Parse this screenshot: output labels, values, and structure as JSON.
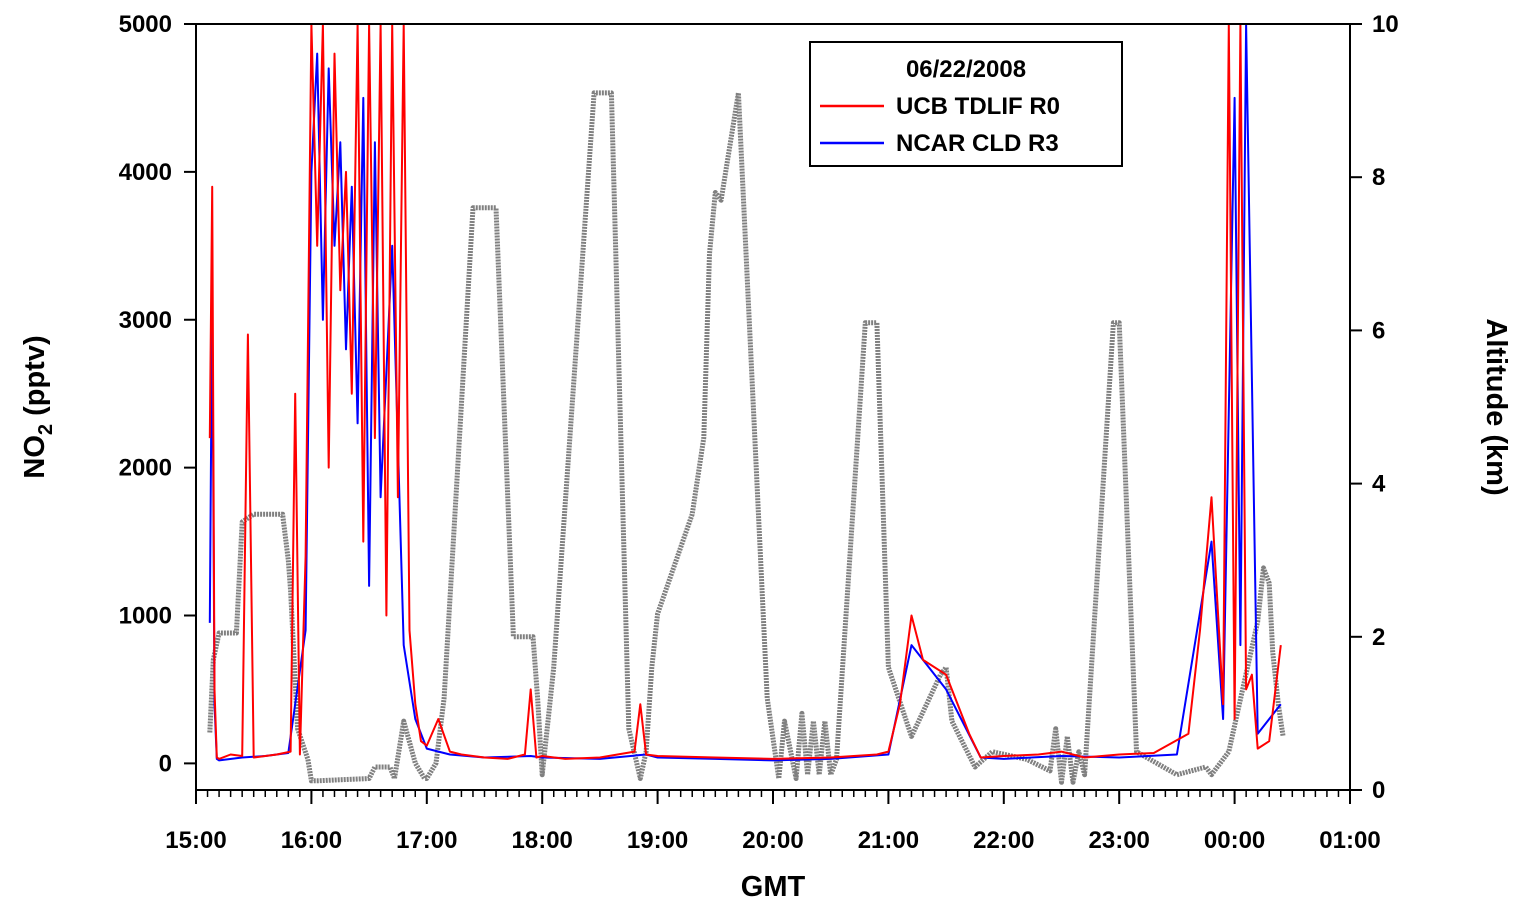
{
  "chart_data": {
    "type": "line",
    "legend": {
      "title": "06/22/2008",
      "placement": "top-center"
    },
    "x_axis": {
      "title": "GMT",
      "ticks": [
        "15:00",
        "16:00",
        "17:00",
        "18:00",
        "19:00",
        "20:00",
        "21:00",
        "22:00",
        "23:00",
        "00:00",
        "01:00"
      ],
      "range_hours": [
        15,
        25
      ]
    },
    "y_left": {
      "title_main": "NO",
      "title_sub": "2",
      "title_rest": " (pptv)",
      "ticks": [
        "0",
        "1000",
        "2000",
        "3000",
        "4000",
        "5000"
      ],
      "range": [
        -180,
        5000
      ]
    },
    "y_right": {
      "title": "Altitude (km)",
      "ticks": [
        "0",
        "2",
        "4",
        "6",
        "8",
        "10"
      ],
      "range": [
        0,
        10
      ]
    },
    "series": [
      {
        "name": "UCB TDLIF R0",
        "color": "#ff0000",
        "axis": "left",
        "x": [
          15.12,
          15.14,
          15.16,
          15.18,
          15.2,
          15.3,
          15.4,
          15.45,
          15.5,
          15.7,
          15.82,
          15.86,
          15.9,
          15.95,
          16.0,
          16.05,
          16.1,
          16.15,
          16.2,
          16.25,
          16.3,
          16.35,
          16.4,
          16.45,
          16.5,
          16.55,
          16.6,
          16.65,
          16.7,
          16.75,
          16.8,
          16.85,
          16.9,
          16.95,
          17.0,
          17.1,
          17.2,
          17.3,
          17.5,
          17.7,
          17.85,
          17.9,
          17.95,
          18.0,
          18.2,
          18.5,
          18.8,
          18.85,
          18.9,
          19.0,
          19.5,
          20.0,
          20.5,
          20.9,
          21.0,
          21.1,
          21.2,
          21.3,
          21.5,
          21.7,
          21.8,
          22.0,
          22.3,
          22.5,
          22.7,
          23.0,
          23.3,
          23.6,
          23.7,
          23.8,
          23.9,
          23.95,
          24.0,
          24.05,
          24.1,
          24.15,
          24.2,
          24.3,
          24.4
        ],
        "y": [
          2200,
          3900,
          500,
          40,
          30,
          60,
          50,
          2900,
          40,
          60,
          80,
          2500,
          60,
          1400,
          5000,
          3500,
          5000,
          2000,
          4800,
          3200,
          4000,
          2500,
          5000,
          1500,
          5000,
          2200,
          5000,
          1000,
          5000,
          1800,
          5000,
          900,
          400,
          150,
          120,
          300,
          80,
          60,
          40,
          30,
          60,
          500,
          40,
          50,
          30,
          40,
          80,
          400,
          60,
          50,
          40,
          30,
          40,
          60,
          80,
          400,
          1000,
          700,
          600,
          200,
          40,
          50,
          60,
          80,
          40,
          60,
          70,
          200,
          900,
          1800,
          400,
          5000,
          300,
          5000,
          500,
          600,
          100,
          150,
          800
        ]
      },
      {
        "name": "NCAR CLD R3",
        "color": "#0000ff",
        "axis": "left",
        "x": [
          15.12,
          15.14,
          15.16,
          15.18,
          15.2,
          15.4,
          15.6,
          15.8,
          15.95,
          16.0,
          16.05,
          16.1,
          16.15,
          16.2,
          16.25,
          16.3,
          16.35,
          16.4,
          16.45,
          16.5,
          16.55,
          16.6,
          16.7,
          16.8,
          16.9,
          17.0,
          17.2,
          17.5,
          17.9,
          18.0,
          18.5,
          18.9,
          19.0,
          19.5,
          20.0,
          20.5,
          21.0,
          21.2,
          21.5,
          21.8,
          22.0,
          22.5,
          23.0,
          23.5,
          23.8,
          23.9,
          24.0,
          24.05,
          24.1,
          24.2,
          24.4
        ],
        "y": [
          950,
          3200,
          400,
          30,
          20,
          40,
          50,
          70,
          900,
          4000,
          4800,
          3000,
          4700,
          3500,
          4200,
          2800,
          3900,
          2300,
          4500,
          1200,
          4200,
          1800,
          3500,
          800,
          300,
          100,
          60,
          40,
          50,
          40,
          30,
          60,
          40,
          30,
          20,
          30,
          60,
          800,
          500,
          40,
          30,
          50,
          40,
          60,
          1500,
          300,
          4500,
          800,
          5000,
          200,
          400
        ]
      },
      {
        "name": "",
        "color": "#808080",
        "axis": "right",
        "x": [
          15.12,
          15.15,
          15.2,
          15.35,
          15.4,
          15.5,
          15.75,
          15.8,
          15.82,
          15.88,
          15.97,
          16.0,
          16.05,
          16.5,
          16.55,
          16.68,
          16.72,
          16.8,
          16.9,
          16.98,
          17.0,
          17.08,
          17.15,
          17.4,
          17.6,
          17.75,
          17.92,
          17.96,
          18.0,
          18.05,
          18.1,
          18.45,
          18.6,
          18.75,
          18.85,
          18.9,
          18.95,
          19.0,
          19.3,
          19.4,
          19.45,
          19.5,
          19.55,
          19.7,
          19.95,
          20.05,
          20.1,
          20.2,
          20.25,
          20.3,
          20.35,
          20.4,
          20.45,
          20.5,
          20.55,
          20.8,
          20.9,
          21.0,
          21.2,
          21.45,
          21.5,
          21.55,
          21.65,
          21.75,
          21.9,
          22.2,
          22.4,
          22.45,
          22.5,
          22.55,
          22.6,
          22.65,
          22.7,
          22.95,
          23.0,
          23.15,
          23.5,
          23.75,
          23.8,
          23.85,
          23.95,
          24.2,
          24.25,
          24.3,
          24.33,
          24.38,
          24.42
        ],
        "y": [
          0.75,
          1.7,
          2.05,
          2.05,
          3.5,
          3.6,
          3.6,
          3.0,
          2.6,
          0.8,
          0.4,
          0.12,
          0.12,
          0.15,
          0.3,
          0.3,
          0.15,
          0.9,
          0.35,
          0.15,
          0.15,
          0.35,
          1.2,
          7.6,
          7.6,
          2.0,
          2.0,
          1.2,
          0.2,
          0.9,
          1.6,
          9.1,
          9.1,
          0.8,
          0.15,
          0.5,
          1.6,
          2.3,
          3.6,
          4.6,
          7.0,
          7.8,
          7.7,
          9.1,
          1.2,
          0.15,
          0.9,
          0.15,
          1.0,
          0.2,
          0.9,
          0.2,
          0.9,
          0.2,
          0.4,
          6.1,
          6.1,
          1.6,
          0.7,
          1.5,
          1.6,
          0.9,
          0.6,
          0.3,
          0.5,
          0.4,
          0.25,
          0.8,
          0.1,
          0.7,
          0.1,
          0.5,
          0.2,
          6.1,
          6.1,
          0.5,
          0.2,
          0.3,
          0.2,
          0.3,
          0.5,
          2.2,
          2.9,
          2.7,
          1.8,
          1.1,
          0.7
        ]
      }
    ]
  }
}
